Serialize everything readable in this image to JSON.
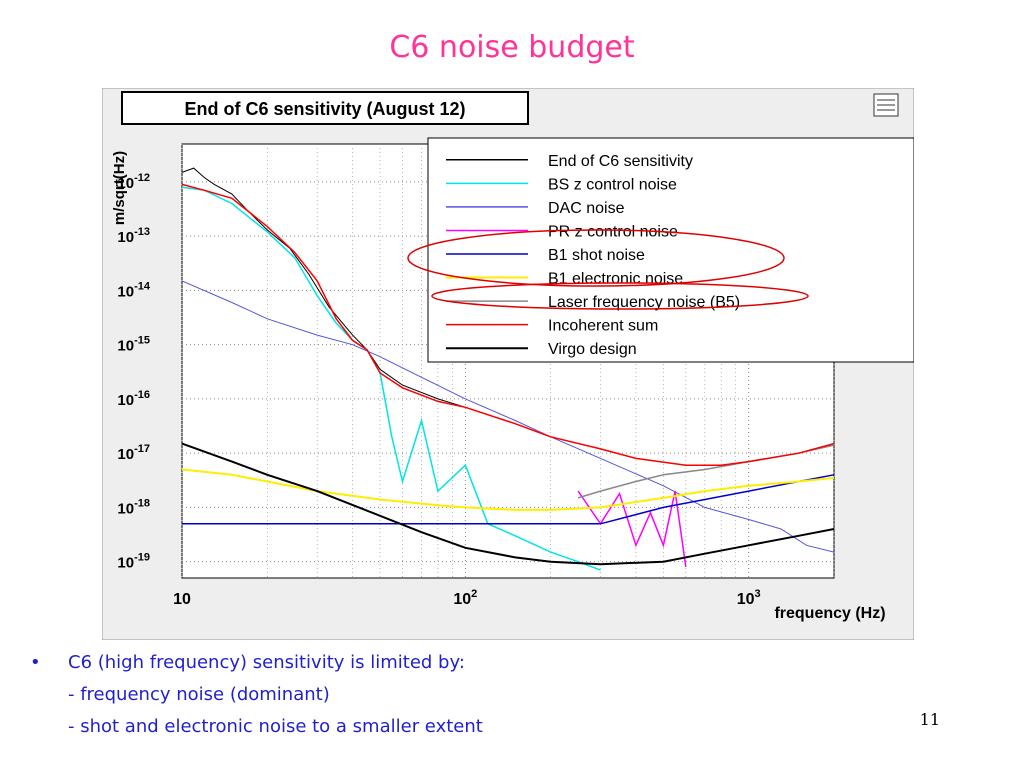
{
  "slide": {
    "title": "C6 noise budget",
    "page_number": "11",
    "bullets": {
      "main": "C6 (high frequency) sensitivity is limited by:",
      "sub": [
        "- frequency noise (dominant)",
        "- shot and electronic noise to a smaller extent"
      ],
      "marker": "•"
    }
  },
  "colors": {
    "title": "#ff3399",
    "bullets": "#1f1fd0",
    "highlight_ellipse": "#e00000",
    "canvas_bg": "#eeeeee",
    "plot_bg": "#ffffff"
  },
  "chart_data": {
    "type": "line",
    "title": "End of C6 sensitivity (August 12)",
    "xlabel": "frequency (Hz)",
    "ylabel": "m/sqrt(Hz)",
    "xscale": "log",
    "yscale": "log",
    "xlim": [
      10,
      2000
    ],
    "ylim": [
      5e-20,
      5e-12
    ],
    "grid": true,
    "legend_position": "top-right",
    "x_ticks": [
      {
        "value": 10,
        "base": "10",
        "exp": ""
      },
      {
        "value": 100,
        "base": "10",
        "exp": "2"
      },
      {
        "value": 1000,
        "base": "10",
        "exp": "3"
      }
    ],
    "y_ticks": [
      {
        "value": 1e-12,
        "base": "10",
        "exp": "-12"
      },
      {
        "value": 1e-13,
        "base": "10",
        "exp": "-13"
      },
      {
        "value": 1e-14,
        "base": "10",
        "exp": "-14"
      },
      {
        "value": 1e-15,
        "base": "10",
        "exp": "-15"
      },
      {
        "value": 1e-16,
        "base": "10",
        "exp": "-16"
      },
      {
        "value": 1e-17,
        "base": "10",
        "exp": "-17"
      },
      {
        "value": 1e-18,
        "base": "10",
        "exp": "-18"
      },
      {
        "value": 1e-19,
        "base": "10",
        "exp": "-19"
      }
    ],
    "highlighted_series": [
      "B1 shot noise",
      "B1 electronic noise",
      "Laser frequency noise (B5)"
    ],
    "series": [
      {
        "name": "End of C6 sensitivity",
        "color": "#000000",
        "width": 1,
        "x": [
          10,
          11,
          12,
          13,
          15,
          17,
          20,
          24,
          28,
          33,
          40,
          45,
          50,
          60,
          80,
          100,
          150,
          200,
          300,
          400,
          600,
          800,
          1000,
          1500,
          2000
        ],
        "y": [
          1.5e-12,
          1.8e-12,
          1.2e-12,
          9e-13,
          6e-13,
          3e-13,
          1.3e-13,
          6e-14,
          2e-14,
          5e-15,
          1.5e-15,
          8e-16,
          3.5e-16,
          1.8e-16,
          1e-16,
          7e-17,
          3.5e-17,
          2e-17,
          1.2e-17,
          8e-18,
          6e-18,
          6e-18,
          7e-18,
          1e-17,
          1.5e-17
        ]
      },
      {
        "name": "BS z control noise",
        "color": "#00e5e5",
        "width": 1.5,
        "x": [
          10,
          12,
          15,
          20,
          25,
          30,
          35,
          40,
          45,
          50,
          55,
          60,
          70,
          80,
          100,
          120,
          150,
          200,
          250,
          300
        ],
        "y": [
          8e-13,
          7e-13,
          4e-13,
          1.2e-13,
          4e-14,
          8e-15,
          2.5e-15,
          1.2e-15,
          8e-16,
          3e-16,
          2e-17,
          3e-18,
          4e-17,
          2e-18,
          6e-18,
          5e-19,
          3e-19,
          1.5e-19,
          1e-19,
          7e-20
        ]
      },
      {
        "name": "DAC noise",
        "color": "#5555dd",
        "width": 1,
        "x": [
          10,
          15,
          20,
          30,
          40,
          50,
          70,
          100,
          150,
          200,
          300,
          500,
          700,
          1000,
          1300,
          1600,
          2000
        ],
        "y": [
          1.5e-14,
          6e-15,
          3e-15,
          1.5e-15,
          1e-15,
          6e-16,
          2.5e-16,
          1e-16,
          4e-17,
          2e-17,
          8e-18,
          2.5e-18,
          1e-18,
          6e-19,
          4e-19,
          2e-19,
          1.5e-19
        ]
      },
      {
        "name": "PR z control noise",
        "color": "#ff00ff",
        "width": 1.5,
        "x": [
          250,
          300,
          350,
          400,
          450,
          500,
          550,
          600
        ],
        "y": [
          2e-18,
          5e-19,
          1.8e-18,
          2e-19,
          8e-19,
          2e-19,
          2e-18,
          8e-20
        ]
      },
      {
        "name": "B1 shot noise",
        "color": "#0000cc",
        "width": 1.5,
        "x": [
          10,
          100,
          300,
          500,
          700,
          1000,
          1500,
          2000
        ],
        "y": [
          5e-19,
          5e-19,
          5e-19,
          1e-18,
          1.4e-18,
          2e-18,
          3e-18,
          4e-18
        ]
      },
      {
        "name": "B1 electronic noise",
        "color": "#ffee00",
        "width": 2,
        "x": [
          10,
          15,
          20,
          30,
          50,
          80,
          100,
          150,
          200,
          300,
          500,
          700,
          1000,
          1500,
          2000
        ],
        "y": [
          5e-18,
          4e-18,
          3e-18,
          2e-18,
          1.4e-18,
          1.1e-18,
          1e-18,
          9e-19,
          9e-19,
          1e-18,
          1.5e-18,
          2e-18,
          2.5e-18,
          3e-18,
          3.5e-18
        ]
      },
      {
        "name": "Laser frequency noise (B5)",
        "color": "#888888",
        "width": 1.5,
        "x": [
          250,
          300,
          400,
          500,
          700,
          1000,
          1500,
          2000
        ],
        "y": [
          1.5e-18,
          2e-18,
          3e-18,
          4e-18,
          5e-18,
          7e-18,
          1e-17,
          1.4e-17
        ]
      },
      {
        "name": "Incoherent sum",
        "color": "#ff0000",
        "width": 1.5,
        "x": [
          10,
          12,
          15,
          20,
          25,
          30,
          35,
          40,
          45,
          50,
          60,
          80,
          100,
          150,
          200,
          300,
          400,
          600,
          800,
          1000,
          1500,
          2000
        ],
        "y": [
          9e-13,
          7e-13,
          5e-13,
          1.5e-13,
          5e-14,
          1.5e-14,
          3e-15,
          1.2e-15,
          8e-16,
          3e-16,
          1.6e-16,
          9e-17,
          7e-17,
          3.5e-17,
          2e-17,
          1.2e-17,
          8e-18,
          6e-18,
          6e-18,
          7e-18,
          1e-17,
          1.5e-17
        ]
      },
      {
        "name": "Virgo design",
        "color": "#000000",
        "width": 2,
        "x": [
          10,
          15,
          20,
          30,
          50,
          70,
          100,
          150,
          200,
          300,
          500,
          700,
          1000,
          1500,
          2000
        ],
        "y": [
          1.5e-17,
          7e-18,
          4e-18,
          2e-18,
          7e-19,
          3.5e-19,
          1.8e-19,
          1.2e-19,
          1e-19,
          9e-20,
          1e-19,
          1.4e-19,
          2e-19,
          3e-19,
          4e-19
        ]
      }
    ]
  }
}
